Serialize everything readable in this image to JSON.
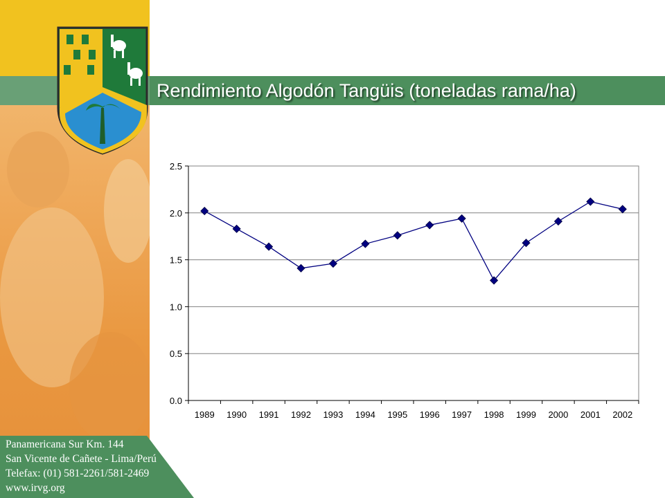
{
  "header": {
    "title": "Rendimiento Algodón Tangüis (toneladas rama/ha)"
  },
  "footer": {
    "lines": [
      "Panamericana Sur Km. 144",
      "San Vicente de Cañete - Lima/Perú",
      "Telefax: (01) 581-2261/581-2469",
      "www.irvg.org"
    ]
  },
  "colors": {
    "series_line": "#000080",
    "marker": "#000080",
    "header_band": "#4d8f5d",
    "footer_band": "#4d8f5d"
  },
  "chart_data": {
    "type": "line",
    "categories": [
      "1989",
      "1990",
      "1991",
      "1992",
      "1993",
      "1994",
      "1995",
      "1996",
      "1997",
      "1998",
      "1999",
      "2000",
      "2001",
      "2002"
    ],
    "values": [
      2.02,
      1.83,
      1.64,
      1.41,
      1.46,
      1.67,
      1.76,
      1.87,
      1.94,
      1.28,
      1.68,
      1.91,
      2.12,
      2.04
    ],
    "yticks": [
      "0.0",
      "0.5",
      "1.0",
      "1.5",
      "2.0",
      "2.5"
    ],
    "ylim": [
      0,
      2.5
    ],
    "grid": true,
    "legend": "none",
    "marker": "diamond"
  }
}
